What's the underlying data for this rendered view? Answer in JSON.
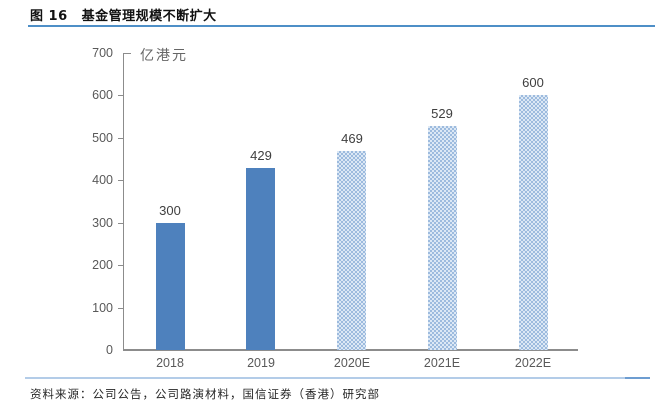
{
  "figure": {
    "label": "图 16",
    "title": "基金管理规模不断扩大",
    "source": "资料来源：公司公告，公司路演材料，国信证券（香港）研究部"
  },
  "chart_data": {
    "type": "bar",
    "title": "基金管理规模不断扩大",
    "unit_label": "亿港元",
    "categories": [
      "2018",
      "2019",
      "2020E",
      "2021E",
      "2022E"
    ],
    "values": [
      300,
      429,
      469,
      529,
      600
    ],
    "value_labels": [
      "300",
      "429",
      "469",
      "529",
      "600"
    ],
    "bar_styles": [
      "solid",
      "solid",
      "pattern",
      "pattern",
      "pattern"
    ],
    "ylim": [
      0,
      700
    ],
    "yticks": [
      0,
      100,
      200,
      300,
      400,
      500,
      600,
      700
    ],
    "grid": "off",
    "legend": "none",
    "colors": {
      "solid_bar": "#4E81BD",
      "pattern_bar_dark": "#9DBBDE",
      "pattern_bar_light": "#DCE8F5",
      "axis": "#8C8C8C",
      "tick_text": "#595959",
      "value_text": "#3F3F3F",
      "unit_text": "#666666",
      "title_text": "#111111",
      "title_rule": "#4E8FC7",
      "footer_rule_light": "#B3CCE8",
      "footer_rule_dark": "#6D9DD1"
    }
  }
}
